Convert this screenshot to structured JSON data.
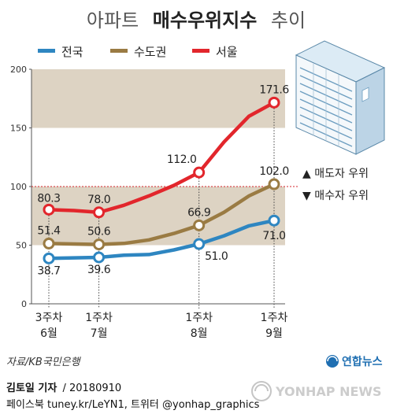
{
  "header": {
    "title_light": "아파트",
    "title_bold": "매수우위지수",
    "title_suffix": "추이"
  },
  "colors": {
    "national": "#2e86c1",
    "capital_area": "#9a7b43",
    "seoul": "#e2262c",
    "band": "#ddd3c3",
    "reference_line": "#d6262c"
  },
  "chart_data": {
    "type": "line",
    "x": [
      "3주차\n6월",
      "",
      "1주차\n7월",
      "",
      "",
      "",
      "1주차\n8월",
      "",
      "",
      "1주차\n9월"
    ],
    "x_tick_labels": [
      {
        "top": "3주차",
        "bottom": "6월"
      },
      {
        "top": "1주차",
        "bottom": "7월"
      },
      {
        "top": "1주차",
        "bottom": "8월"
      },
      {
        "top": "1주차",
        "bottom": "9월"
      }
    ],
    "series": [
      {
        "name": "전국",
        "values": [
          38.7,
          39.2,
          39.6,
          41.5,
          42.0,
          46.0,
          51.0,
          58.0,
          66.5,
          71.0
        ]
      },
      {
        "name": "수도권",
        "values": [
          51.4,
          51.0,
          50.6,
          51.5,
          54.5,
          60.0,
          66.9,
          78.0,
          92.0,
          102.0
        ]
      },
      {
        "name": "서울",
        "values": [
          80.3,
          79.5,
          78.0,
          84.0,
          92.0,
          101.0,
          112.0,
          138.0,
          160.0,
          171.6
        ]
      }
    ],
    "labeled_points": [
      {
        "series": "전국",
        "index": 0,
        "label": "38.7"
      },
      {
        "series": "전국",
        "index": 2,
        "label": "39.6"
      },
      {
        "series": "전국",
        "index": 6,
        "label": "51.0"
      },
      {
        "series": "전국",
        "index": 9,
        "label": "71.0"
      },
      {
        "series": "수도권",
        "index": 0,
        "label": "51.4"
      },
      {
        "series": "수도권",
        "index": 2,
        "label": "50.6"
      },
      {
        "series": "수도권",
        "index": 6,
        "label": "66.9"
      },
      {
        "series": "수도권",
        "index": 9,
        "label": "102.0"
      },
      {
        "series": "서울",
        "index": 0,
        "label": "80.3"
      },
      {
        "series": "서울",
        "index": 2,
        "label": "78.0"
      },
      {
        "series": "서울",
        "index": 6,
        "label": "112.0"
      },
      {
        "series": "서울",
        "index": 9,
        "label": "171.6"
      }
    ],
    "yticks": [
      "0",
      "50",
      "100",
      "150",
      "200"
    ],
    "ylim": [
      0,
      200
    ],
    "bands": [
      [
        50,
        100
      ],
      [
        150,
        200
      ]
    ],
    "reference_line": 100,
    "reference_labels": {
      "above": "▲ 매도자 우위",
      "below": "▼ 매수자 우위"
    },
    "legend_placement": "top"
  },
  "footer": {
    "source": "자료/KB국민은행",
    "author": "김토일 기자",
    "date": "/ 20180910",
    "social": "페이스북 tuney.kr/LeYN1, 트위터 @yonhap_graphics",
    "agency": "연합뉴스",
    "watermark": "YONHAP NEWS"
  }
}
